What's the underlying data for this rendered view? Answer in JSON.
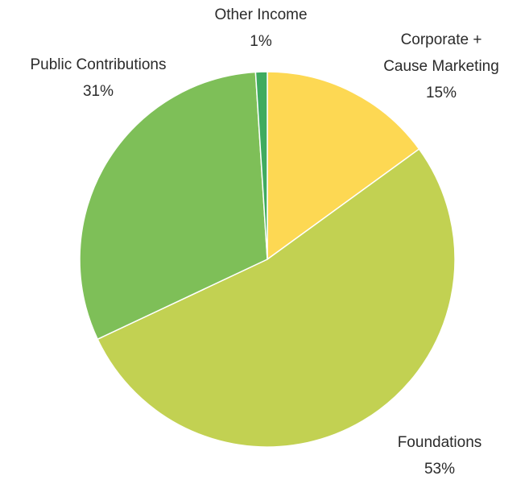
{
  "chart_data": {
    "type": "pie",
    "title": "",
    "slices": [
      {
        "name": "Corporate + Cause Marketing",
        "label_lines": [
          "Corporate +",
          "Cause Marketing"
        ],
        "percent_label": "15%",
        "value": 15,
        "color": "#fdd853"
      },
      {
        "name": "Foundations",
        "label_lines": [
          "Foundations"
        ],
        "percent_label": "53%",
        "value": 53,
        "color": "#c2d152"
      },
      {
        "name": "Public Contributions",
        "label_lines": [
          "Public Contributions"
        ],
        "percent_label": "31%",
        "value": 31,
        "color": "#7ebf58"
      },
      {
        "name": "Other Income",
        "label_lines": [
          "Other Income"
        ],
        "percent_label": "1%",
        "value": 1,
        "color": "#3fab5f"
      }
    ],
    "start_angle": "12 o'clock",
    "direction": "clockwise",
    "legend": "none"
  }
}
